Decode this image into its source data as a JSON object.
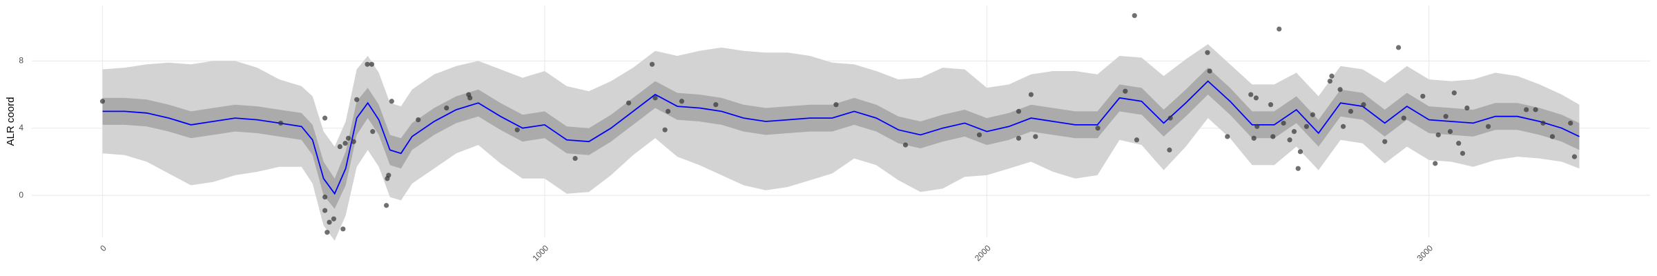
{
  "chart_data": {
    "type": "line",
    "y_label": "ALR coord",
    "xlim": [
      -160,
      3500
    ],
    "ylim": [
      -2.5,
      11.3
    ],
    "xticks": [
      0,
      1000,
      2000,
      3000
    ],
    "yticks": [
      0,
      4,
      8
    ],
    "grid": true,
    "x": [
      0,
      50,
      100,
      150,
      200,
      250,
      300,
      350,
      400,
      450,
      475,
      500,
      525,
      550,
      575,
      600,
      625,
      650,
      675,
      700,
      750,
      800,
      850,
      900,
      950,
      1000,
      1050,
      1100,
      1150,
      1200,
      1250,
      1300,
      1350,
      1400,
      1450,
      1500,
      1550,
      1600,
      1650,
      1700,
      1750,
      1800,
      1850,
      1900,
      1950,
      2000,
      2050,
      2100,
      2150,
      2200,
      2250,
      2300,
      2350,
      2400,
      2450,
      2500,
      2550,
      2600,
      2650,
      2700,
      2750,
      2800,
      2850,
      2900,
      2950,
      3000,
      3050,
      3100,
      3150,
      3200,
      3250,
      3300,
      3340
    ],
    "bands": [
      {
        "color": "#d3d3d3",
        "lower": [
          2.5,
          2.4,
          2.0,
          1.3,
          0.6,
          0.8,
          1.2,
          1.4,
          1.7,
          1.7,
          0.7,
          -1.8,
          -2.7,
          -1.2,
          1.7,
          2.7,
          1.7,
          -0.1,
          -0.3,
          0.7,
          1.6,
          2.5,
          3.0,
          1.9,
          1.0,
          1.0,
          0.1,
          0.2,
          1.2,
          2.4,
          3.4,
          2.3,
          1.8,
          1.2,
          0.6,
          0.3,
          0.5,
          0.9,
          1.3,
          2.2,
          1.8,
          0.9,
          0.2,
          0.4,
          1.1,
          1.2,
          1.6,
          2.0,
          1.4,
          1.0,
          1.2,
          3.3,
          3.0,
          1.5,
          2.9,
          4.6,
          3.4,
          1.8,
          1.8,
          2.9,
          1.5,
          3.3,
          3.1,
          1.9,
          2.9,
          2.1,
          2.0,
          1.7,
          2.1,
          2.3,
          2.2,
          2.0,
          1.6
        ],
        "upper": [
          7.5,
          7.6,
          7.8,
          7.9,
          7.8,
          8.0,
          8.0,
          7.6,
          6.9,
          6.5,
          5.9,
          3.8,
          2.9,
          4.4,
          7.5,
          8.3,
          7.3,
          5.5,
          5.3,
          6.3,
          7.2,
          7.7,
          8.0,
          7.5,
          7.0,
          7.4,
          6.5,
          6.2,
          6.8,
          7.6,
          8.6,
          8.3,
          8.6,
          8.8,
          8.6,
          8.5,
          8.5,
          8.3,
          7.9,
          7.8,
          7.4,
          6.9,
          7.0,
          7.6,
          7.5,
          6.4,
          6.6,
          7.2,
          7.4,
          7.4,
          7.2,
          8.3,
          8.2,
          7.1,
          8.1,
          9.0,
          7.8,
          6.6,
          6.6,
          7.3,
          5.9,
          7.7,
          7.5,
          6.7,
          7.7,
          6.9,
          6.8,
          6.9,
          7.3,
          7.1,
          6.6,
          6.0,
          5.4
        ]
      },
      {
        "color": "#ababab",
        "lower": [
          4.2,
          4.2,
          4.1,
          3.8,
          3.4,
          3.6,
          3.8,
          3.7,
          3.5,
          3.3,
          2.4,
          0.0,
          -0.8,
          0.6,
          3.6,
          4.6,
          3.6,
          1.8,
          1.6,
          2.7,
          3.6,
          4.3,
          4.7,
          3.9,
          3.2,
          3.4,
          2.5,
          2.4,
          3.2,
          4.2,
          5.2,
          4.5,
          4.4,
          4.2,
          3.8,
          3.6,
          3.7,
          3.8,
          3.8,
          4.2,
          3.8,
          3.1,
          2.8,
          3.2,
          3.5,
          3.0,
          3.3,
          3.8,
          3.6,
          3.4,
          3.4,
          5.0,
          4.8,
          3.5,
          4.7,
          6.0,
          4.8,
          3.4,
          3.4,
          4.3,
          2.9,
          4.7,
          4.5,
          3.5,
          4.5,
          3.7,
          3.6,
          3.5,
          3.9,
          3.9,
          3.6,
          3.2,
          2.7
        ],
        "upper": [
          5.8,
          5.8,
          5.7,
          5.4,
          5.0,
          5.2,
          5.4,
          5.3,
          5.1,
          4.9,
          4.2,
          2.0,
          1.0,
          2.6,
          5.6,
          6.4,
          5.4,
          3.6,
          3.4,
          4.3,
          5.2,
          5.9,
          6.3,
          5.5,
          4.8,
          5.0,
          4.1,
          4.0,
          4.8,
          5.8,
          6.8,
          6.1,
          6.0,
          5.8,
          5.4,
          5.2,
          5.3,
          5.4,
          5.4,
          5.8,
          5.4,
          4.7,
          4.4,
          4.8,
          5.1,
          4.6,
          4.9,
          5.4,
          5.2,
          5.0,
          5.0,
          6.6,
          6.4,
          5.1,
          6.3,
          7.6,
          6.4,
          5.0,
          5.0,
          5.9,
          4.5,
          6.3,
          6.1,
          5.1,
          6.1,
          5.3,
          5.2,
          5.1,
          5.5,
          5.5,
          5.2,
          4.8,
          4.3
        ]
      }
    ],
    "fit": {
      "color": "#0000ff",
      "values": [
        5.0,
        5.0,
        4.9,
        4.6,
        4.2,
        4.4,
        4.6,
        4.5,
        4.3,
        4.1,
        3.3,
        1.0,
        0.1,
        1.6,
        4.6,
        5.5,
        4.5,
        2.7,
        2.5,
        3.5,
        4.4,
        5.1,
        5.5,
        4.7,
        4.0,
        4.2,
        3.3,
        3.2,
        4.0,
        5.0,
        6.0,
        5.3,
        5.2,
        5.0,
        4.6,
        4.4,
        4.5,
        4.6,
        4.6,
        5.0,
        4.6,
        3.9,
        3.6,
        4.0,
        4.3,
        3.8,
        4.1,
        4.6,
        4.4,
        4.2,
        4.2,
        5.8,
        5.6,
        4.3,
        5.5,
        6.8,
        5.6,
        4.2,
        4.2,
        5.1,
        3.7,
        5.5,
        5.3,
        4.3,
        5.3,
        4.5,
        4.4,
        4.3,
        4.7,
        4.7,
        4.4,
        4.0,
        3.5
      ]
    },
    "points": {
      "color": "#333333",
      "x": [
        0,
        403,
        503,
        503,
        513,
        523,
        508,
        544,
        503,
        537,
        549,
        556,
        568,
        575,
        599,
        609,
        611,
        642,
        644,
        654,
        647,
        714,
        778,
        828,
        831,
        938,
        1069,
        1190,
        1243,
        1250,
        1272,
        1279,
        1310,
        1387,
        1659,
        1816,
        1983,
        2072,
        2072,
        2100,
        2110,
        2251,
        2313,
        2334,
        2339,
        2413,
        2415,
        2499,
        2504,
        2544,
        2597,
        2609,
        2611,
        2604,
        2642,
        2647,
        2661,
        2671,
        2685,
        2695,
        2704,
        2709,
        2723,
        2737,
        2776,
        2780,
        2799,
        2806,
        2823,
        2852,
        2900,
        2931,
        2943,
        2986,
        3014,
        3021,
        3038,
        3048,
        3057,
        3067,
        3076,
        3086,
        3134,
        3220,
        3241,
        3258,
        3279,
        3320,
        3329
      ],
      "y": [
        5.6,
        4.3,
        -0.1,
        -0.9,
        -1.6,
        -1.4,
        -2.2,
        -2.0,
        4.6,
        2.9,
        3.1,
        3.4,
        3.2,
        5.7,
        7.8,
        7.8,
        3.8,
        -0.6,
        1.0,
        5.6,
        1.2,
        4.5,
        5.2,
        6.0,
        5.8,
        3.9,
        2.2,
        5.5,
        7.8,
        5.8,
        3.9,
        5.0,
        5.6,
        5.4,
        5.4,
        3.0,
        3.6,
        5.0,
        3.4,
        6.0,
        3.5,
        4.0,
        6.2,
        10.7,
        3.3,
        2.7,
        4.6,
        8.5,
        7.4,
        3.5,
        6.0,
        5.8,
        4.1,
        3.4,
        5.4,
        3.5,
        9.9,
        4.3,
        3.3,
        3.8,
        1.6,
        2.6,
        4.1,
        4.8,
        6.8,
        7.1,
        6.3,
        4.1,
        5.0,
        5.4,
        3.2,
        8.8,
        4.6,
        5.9,
        1.9,
        3.6,
        4.7,
        3.8,
        6.1,
        3.1,
        2.5,
        5.2,
        4.1,
        5.1,
        5.1,
        4.3,
        3.5,
        4.3,
        2.3
      ]
    }
  }
}
